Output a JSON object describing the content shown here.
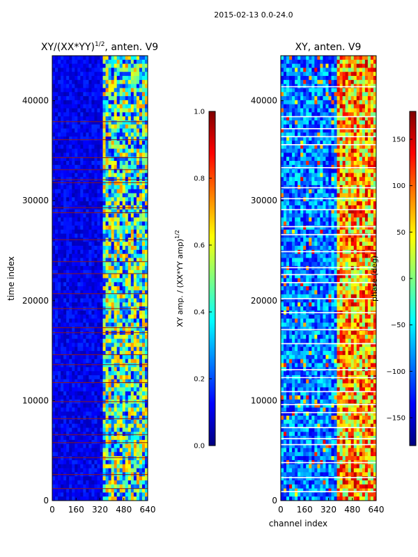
{
  "figure": {
    "suptitle": "2015-02-13 0.0-24.0"
  },
  "colors": {
    "jet": [
      "#00007f",
      "#0000ff",
      "#007fff",
      "#00ffff",
      "#7fff7f",
      "#ffff00",
      "#ff7f00",
      "#ff0000",
      "#7f0000"
    ],
    "flag_line": "#8b1a1a",
    "white_stripe": "#ffffff"
  },
  "chart_data": [
    {
      "type": "heatmap",
      "title_main": "XY/(XX*YY)",
      "title_sup": "1/2",
      "title_rest": ", anten. V9",
      "xlabel": "",
      "ylabel": "time index",
      "xlim": [
        0,
        640
      ],
      "ylim": [
        0,
        44500
      ],
      "xticks": [
        0,
        160,
        320,
        480,
        640
      ],
      "yticks": [
        0,
        10000,
        20000,
        30000,
        40000
      ],
      "signal_channels": [
        330,
        640
      ],
      "flagged_rows": [
        1200,
        2600,
        4300,
        5800,
        6600,
        8200,
        9900,
        11800,
        13600,
        14600,
        16800,
        17300,
        19200,
        20700,
        22700,
        23900,
        26100,
        28800,
        29300,
        31800,
        32100,
        33100,
        34300,
        36100,
        37900
      ],
      "colorbar": {
        "label_main": "XY amp. / (XX*YY amp)",
        "label_sup": "1/2",
        "range": [
          0.0,
          1.0
        ],
        "ticks": [
          "0.0",
          "0.2",
          "0.4",
          "0.6",
          "0.8",
          "1.0"
        ]
      }
    },
    {
      "type": "heatmap",
      "title_main": "XY, anten. V9",
      "xlabel": "channel index",
      "ylabel": "",
      "xlim": [
        0,
        640
      ],
      "ylim": [
        0,
        44500
      ],
      "xticks": [
        0,
        160,
        320,
        480,
        640
      ],
      "yticks": [
        0,
        10000,
        20000,
        30000,
        40000
      ],
      "signal_channels": [
        380,
        640
      ],
      "white_rows": [
        900,
        2300,
        3800,
        5600,
        6200,
        7300,
        8800,
        9600,
        10900,
        12300,
        13100,
        15700,
        17100,
        18800,
        20200,
        21800,
        22600,
        23300,
        24900,
        26600,
        27400,
        29100,
        30200,
        31300,
        33300,
        35600,
        36400,
        37200,
        38400,
        41400
      ],
      "colorbar": {
        "label_main": "phase (deg)",
        "range": [
          -180,
          180
        ],
        "ticks": [
          "150",
          "100",
          "50",
          "0",
          "−50",
          "−100",
          "−150"
        ]
      }
    }
  ]
}
